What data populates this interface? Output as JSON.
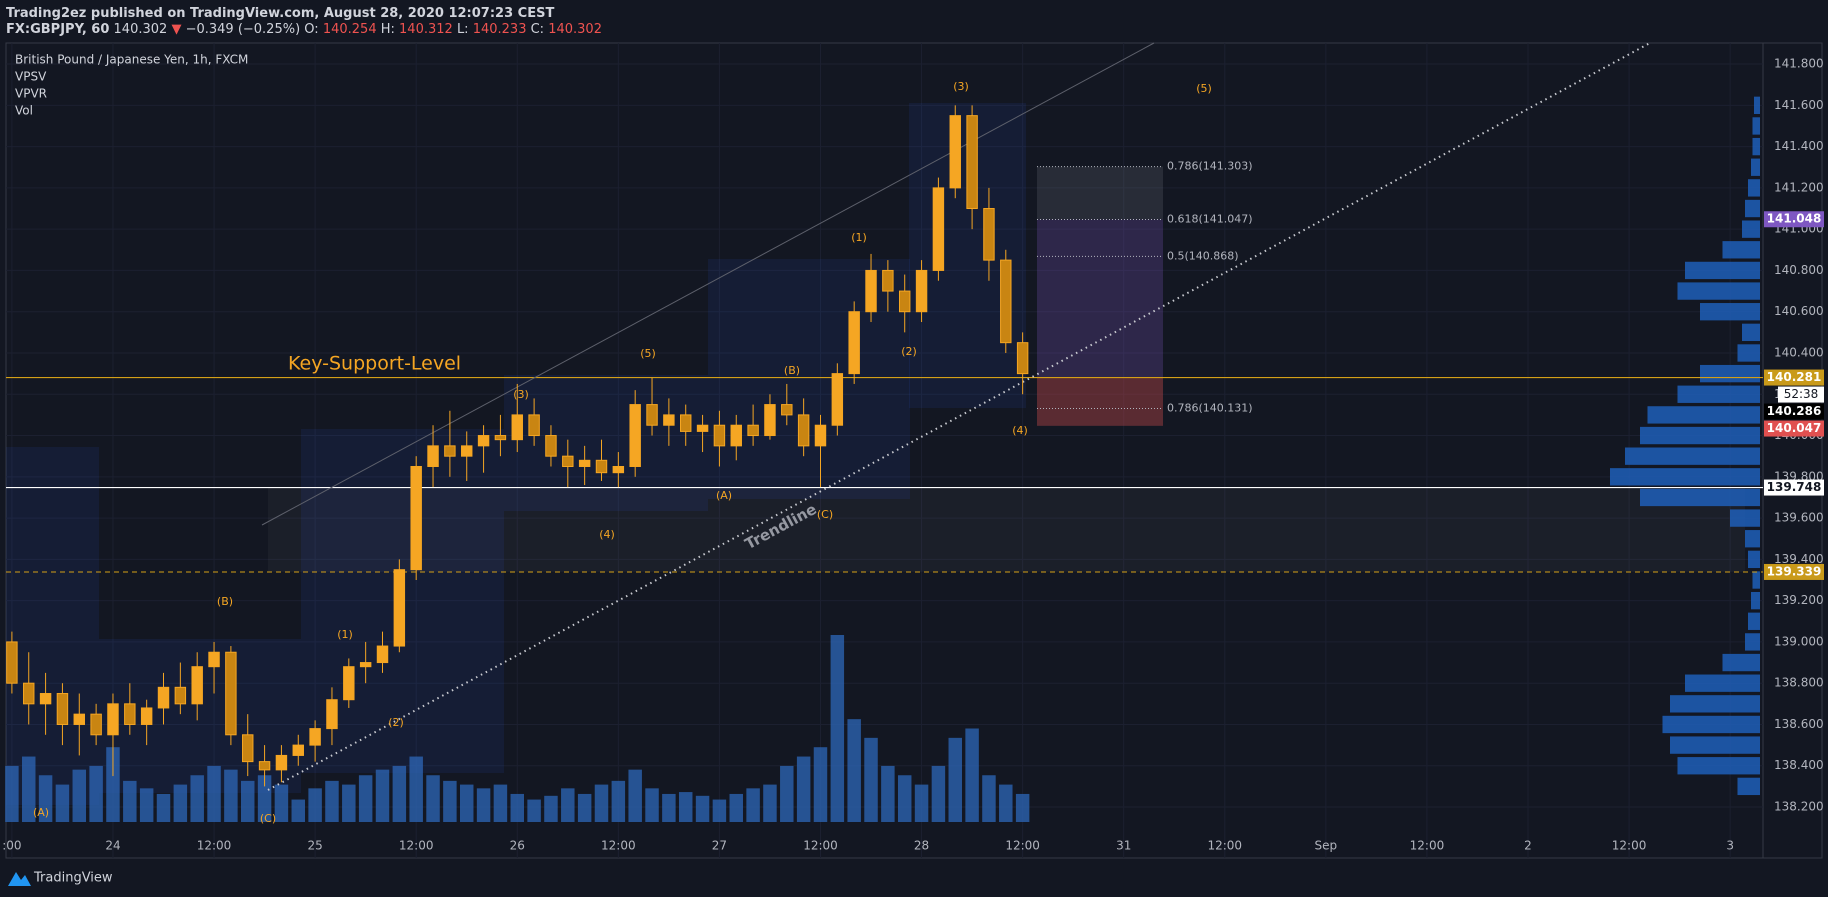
{
  "header": {
    "publisher": "Trading2ez published on TradingView.com, August 28, 2020 12:07:23 CEST",
    "symbol": "FX:GBPJPY, 60",
    "last": "140.302",
    "arrow": "▼",
    "change": "−0.349 (−0.25%)",
    "open_label": "O:",
    "open": "140.254",
    "high_label": "H:",
    "high": "140.312",
    "low_label": "L:",
    "low": "140.233",
    "close_label": "C:",
    "close": "140.302"
  },
  "footer": {
    "brand": "TradingView"
  },
  "chart_data": {
    "type": "candlestick",
    "title": "British Pound / Japanese Yen, 1h, FXCM",
    "indicators": [
      "VPSV",
      "VPVR",
      "Vol"
    ],
    "color": "#f5a623",
    "volume_color": "#2c63b0",
    "profile_color": "#1f5fb8",
    "x": [
      -12,
      -10,
      -8,
      -6,
      -4,
      -2,
      0,
      2,
      4,
      6,
      8,
      10,
      12,
      14,
      16,
      18,
      20,
      22,
      24,
      26,
      28,
      30,
      32,
      34,
      36,
      38,
      40,
      42,
      44,
      46,
      48,
      50,
      52,
      54,
      56,
      58,
      60,
      62,
      64,
      66,
      68,
      70,
      72,
      74,
      76,
      78,
      80,
      82,
      84,
      86,
      88,
      90,
      92,
      94,
      96,
      98,
      100,
      102,
      104,
      106,
      108
    ],
    "open": [
      139.0,
      138.8,
      138.7,
      138.75,
      138.6,
      138.65,
      138.55,
      138.7,
      138.6,
      138.68,
      138.78,
      138.7,
      138.88,
      138.95,
      138.55,
      138.42,
      138.38,
      138.45,
      138.5,
      138.58,
      138.72,
      138.88,
      138.9,
      138.98,
      139.35,
      139.85,
      139.95,
      139.9,
      139.95,
      140.0,
      139.98,
      140.1,
      140.0,
      139.9,
      139.85,
      139.88,
      139.82,
      139.85,
      140.15,
      140.05,
      140.1,
      140.02,
      140.05,
      139.95,
      140.05,
      140.0,
      140.15,
      140.1,
      139.95,
      140.05,
      140.3,
      140.6,
      140.8,
      140.7,
      140.6,
      140.8,
      141.2,
      141.55,
      141.1,
      140.85,
      140.45
    ],
    "high": [
      139.05,
      138.95,
      138.85,
      138.8,
      138.75,
      138.7,
      138.75,
      138.8,
      138.72,
      138.85,
      138.9,
      138.95,
      139.0,
      138.98,
      138.65,
      138.5,
      138.5,
      138.55,
      138.62,
      138.78,
      138.92,
      139.0,
      139.05,
      139.4,
      139.9,
      140.05,
      140.12,
      140.02,
      140.05,
      140.1,
      140.25,
      140.18,
      140.05,
      139.98,
      139.95,
      139.98,
      139.92,
      140.22,
      140.28,
      140.18,
      140.15,
      140.1,
      140.12,
      140.1,
      140.15,
      140.2,
      140.25,
      140.18,
      140.1,
      140.35,
      140.65,
      140.88,
      140.85,
      140.78,
      140.85,
      141.25,
      141.6,
      141.6,
      141.2,
      140.9,
      140.5
    ],
    "low": [
      138.75,
      138.6,
      138.55,
      138.5,
      138.45,
      138.5,
      138.35,
      138.55,
      138.5,
      138.6,
      138.65,
      138.62,
      138.75,
      138.5,
      138.35,
      138.3,
      138.32,
      138.4,
      138.42,
      138.5,
      138.68,
      138.8,
      138.85,
      138.95,
      139.3,
      139.75,
      139.8,
      139.78,
      139.82,
      139.9,
      139.92,
      139.95,
      139.85,
      139.75,
      139.76,
      139.78,
      139.75,
      139.8,
      140.0,
      139.95,
      139.95,
      139.92,
      139.85,
      139.88,
      139.95,
      139.98,
      140.05,
      139.9,
      139.75,
      140.0,
      140.25,
      140.55,
      140.6,
      140.5,
      140.55,
      140.75,
      141.15,
      141.0,
      140.75,
      140.4,
      140.2
    ],
    "close": [
      138.8,
      138.7,
      138.75,
      138.6,
      138.65,
      138.55,
      138.7,
      138.6,
      138.68,
      138.78,
      138.7,
      138.88,
      138.95,
      138.55,
      138.42,
      138.38,
      138.45,
      138.5,
      138.58,
      138.72,
      138.88,
      138.9,
      138.98,
      139.35,
      139.85,
      139.95,
      139.9,
      139.95,
      140.0,
      139.98,
      140.1,
      140.0,
      139.9,
      139.85,
      139.88,
      139.82,
      139.85,
      140.15,
      140.05,
      140.1,
      140.02,
      140.05,
      139.95,
      140.05,
      140.0,
      140.15,
      140.1,
      139.95,
      140.05,
      140.3,
      140.6,
      140.8,
      140.7,
      140.6,
      140.8,
      141.2,
      141.55,
      141.1,
      140.85,
      140.45,
      140.3
    ],
    "volume": [
      30,
      35,
      25,
      20,
      28,
      30,
      40,
      22,
      18,
      15,
      20,
      25,
      30,
      28,
      22,
      25,
      20,
      12,
      18,
      22,
      20,
      25,
      28,
      30,
      35,
      25,
      22,
      20,
      18,
      20,
      15,
      12,
      14,
      18,
      15,
      20,
      22,
      28,
      18,
      15,
      16,
      14,
      12,
      15,
      18,
      20,
      30,
      35,
      40,
      100,
      55,
      45,
      30,
      25,
      20,
      30,
      45,
      50,
      25,
      20,
      15
    ],
    "volume_profile": {
      "prices": [
        138.3,
        138.4,
        138.5,
        138.6,
        138.7,
        138.8,
        138.9,
        139.0,
        139.1,
        139.2,
        139.3,
        139.4,
        139.5,
        139.6,
        139.7,
        139.8,
        139.9,
        140.0,
        140.1,
        140.2,
        140.3,
        140.4,
        140.5,
        140.6,
        140.7,
        140.8,
        140.9,
        141.0,
        141.1,
        141.2,
        141.3,
        141.4,
        141.5,
        141.6
      ],
      "values": [
        15,
        55,
        60,
        65,
        60,
        50,
        25,
        10,
        8,
        6,
        5,
        8,
        10,
        20,
        80,
        100,
        90,
        80,
        75,
        55,
        40,
        15,
        12,
        40,
        55,
        50,
        25,
        12,
        10,
        8,
        6,
        5,
        5,
        4
      ]
    },
    "xlim": [
      -12.7,
      195.9
    ],
    "ylim": [
      137.953,
      141.902
    ],
    "xticks": [
      {
        "value": -12,
        "label": ":00"
      },
      {
        "value": 0,
        "label": "24"
      },
      {
        "value": 12,
        "label": "12:00"
      },
      {
        "value": 24,
        "label": "25"
      },
      {
        "value": 36,
        "label": "12:00"
      },
      {
        "value": 48,
        "label": "26"
      },
      {
        "value": 60,
        "label": "12:00"
      },
      {
        "value": 72,
        "label": "27"
      },
      {
        "value": 84,
        "label": "12:00"
      },
      {
        "value": 96,
        "label": "28"
      },
      {
        "value": 108,
        "label": "12:00"
      },
      {
        "value": 120,
        "label": "31"
      },
      {
        "value": 132,
        "label": "12:00"
      },
      {
        "value": 144,
        "label": "Sep"
      },
      {
        "value": 156,
        "label": "12:00"
      },
      {
        "value": 168,
        "label": "2"
      },
      {
        "value": 180,
        "label": "12:00"
      },
      {
        "value": 192,
        "label": "3"
      }
    ],
    "yticks": [
      {
        "value": 138.2,
        "label": "138.200"
      },
      {
        "value": 138.4,
        "label": "138.400"
      },
      {
        "value": 138.6,
        "label": "138.600"
      },
      {
        "value": 138.8,
        "label": "138.800"
      },
      {
        "value": 139.0,
        "label": "139.000"
      },
      {
        "value": 139.2,
        "label": "139.200"
      },
      {
        "value": 139.4,
        "label": "139.400"
      },
      {
        "value": 139.6,
        "label": "139.600"
      },
      {
        "value": 139.8,
        "label": "139.800"
      },
      {
        "value": 140.0,
        "label": "140.000"
      },
      {
        "value": 140.2,
        "label": "140.200"
      },
      {
        "value": 140.4,
        "label": "140.400"
      },
      {
        "value": 140.6,
        "label": "140.600"
      },
      {
        "value": 140.8,
        "label": "140.800"
      },
      {
        "value": 141.0,
        "label": "141.000"
      },
      {
        "value": 141.2,
        "label": "141.200"
      },
      {
        "value": 141.4,
        "label": "141.400"
      },
      {
        "value": 141.6,
        "label": "141.600"
      },
      {
        "value": 141.8,
        "label": "141.800"
      }
    ],
    "price_labels": [
      {
        "value": 141.048,
        "color": "#7e57c2",
        "text_color": "#ffffff"
      },
      {
        "value": 140.281,
        "color": "#c99a1a",
        "text_color": "#ffffff"
      },
      {
        "value": 140.286,
        "color": "#000000",
        "text_color": "#ffffff"
      },
      {
        "value": 140.047,
        "color": "#e05050",
        "text_color": "#ffffff"
      },
      {
        "value": 139.748,
        "color": "#ffffff",
        "text_color": "#131722"
      },
      {
        "value": 139.339,
        "color": "#c99a1a",
        "text_color": "#ffffff"
      }
    ],
    "countdown": "52:38",
    "key_support": {
      "value": 140.281,
      "label": "Key-Support-Level"
    },
    "support_line": 139.748,
    "zone_line": 139.339,
    "fib_levels": [
      {
        "value": 141.303,
        "label": "0.786(141.303)"
      },
      {
        "value": 141.047,
        "label": "0.618(141.047)"
      },
      {
        "value": 140.868,
        "label": "0.5(140.868)"
      },
      {
        "value": 140.131,
        "label": "0.786(140.131)"
      }
    ],
    "trendline_label": "Trendline",
    "waves": [
      "(A)",
      "(B)",
      "(C)",
      "(1)",
      "(2)",
      "(3)",
      "(4)",
      "(5)",
      "(A)",
      "(B)",
      "(C)",
      "(1)",
      "(2)",
      "(3)",
      "(4)",
      "(5)"
    ]
  }
}
